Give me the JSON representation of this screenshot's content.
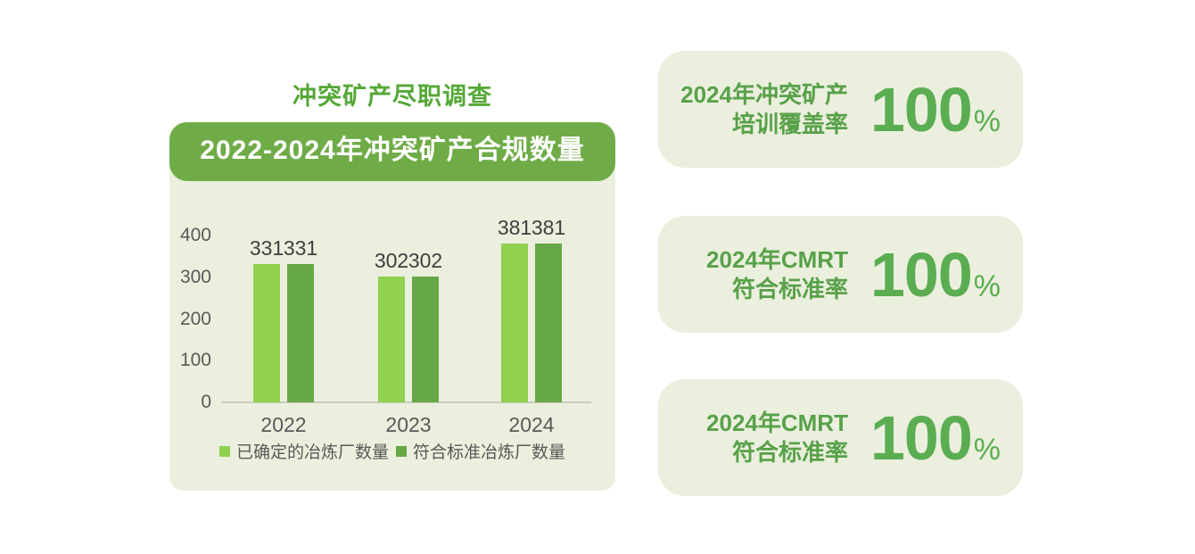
{
  "page": {
    "title": "冲突矿产尽职调查"
  },
  "chart_data": {
    "type": "bar",
    "title": "2022-2024年冲突矿产合规数量",
    "categories": [
      "2022",
      "2023",
      "2024"
    ],
    "series": [
      {
        "name": "已确定的冶炼厂数量",
        "color": "#92D050",
        "values": [
          331,
          302,
          381
        ]
      },
      {
        "name": "符合标准冶炼厂数量",
        "color": "#66A747",
        "values": [
          331,
          302,
          381
        ]
      }
    ],
    "xlabel": "",
    "ylabel": "",
    "ylim": [
      0,
      400
    ],
    "yticks": [
      0,
      100,
      200,
      300,
      400
    ],
    "grid": false,
    "data_labels": true,
    "legend_position": "bottom"
  },
  "stat_cards": [
    {
      "label_line1": "2024年冲突矿产",
      "label_line2": "培训覆盖率",
      "value": "100",
      "unit": "%"
    },
    {
      "label_line1": "2024年CMRT",
      "label_line2": "符合标准率",
      "value": "100",
      "unit": "%"
    },
    {
      "label_line1": "2024年CMRT",
      "label_line2": "符合标准率",
      "value": "100",
      "unit": "%"
    }
  ],
  "colors": {
    "accent_green": "#6FAC47",
    "series_light_green": "#92D050",
    "series_dark_green": "#66A747",
    "title_green": "#55A837",
    "stat_number_green": "#5BAD52",
    "stat_label_green": "#58A14A",
    "card_bg": "#EBEFDD",
    "banner_text": "#FFFFFF",
    "value_label_text": "#3F3F3F",
    "axis_text": "#595959",
    "axis_line": "#C9CDBC"
  }
}
